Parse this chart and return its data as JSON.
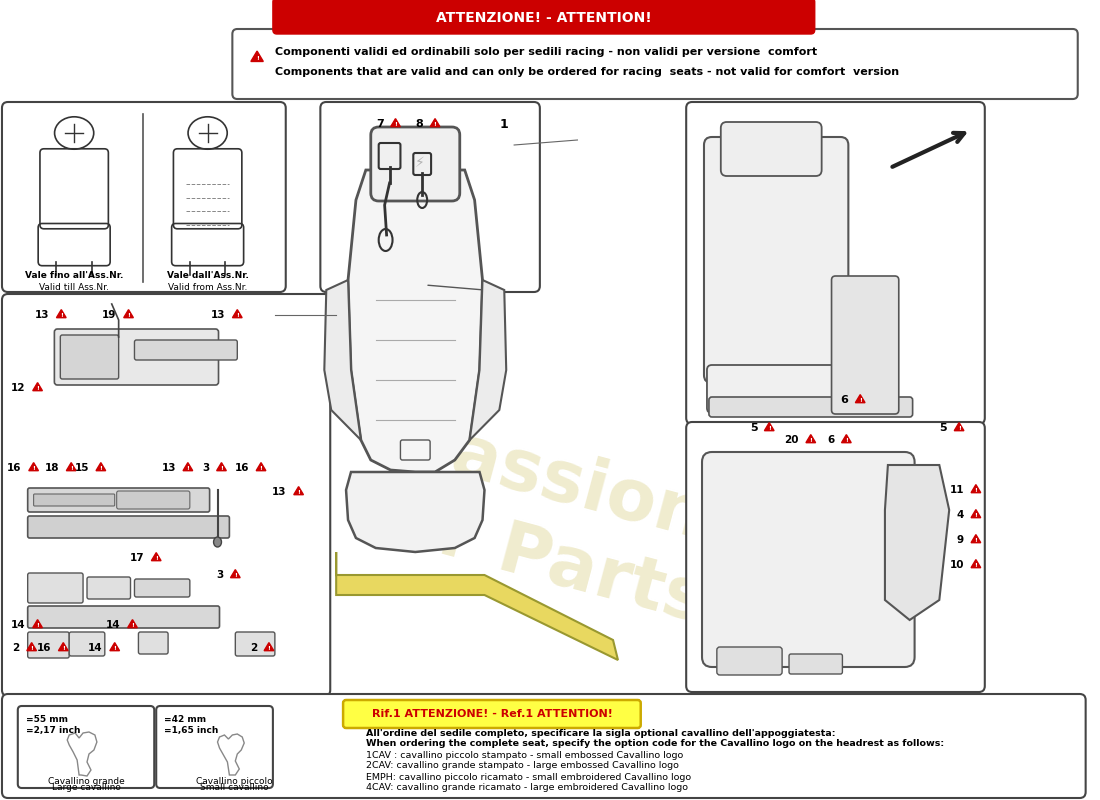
{
  "title": "ATTENZIONE! - ATTENTION!",
  "warn1": "Componenti validi ed ordinabili solo per sedili racing - non validi per versione  comfort",
  "warn2": "Components that are valid and can only be ordered for racing  seats - not valid for comfort  version",
  "attn_label": "Rif.1 ATTENZIONE! - Ref.1 ATTENTION!",
  "bottom_lines": [
    "All'ordine del sedile completo, specificare la sigla optional cavallino dell'appoggiatesta:",
    "When ordering the complete seat, specify the option code for the Cavallino logo on the headrest as follows:",
    "1CAV : cavallino piccolo stampato - small embossed Cavallino logo",
    "2CAV: cavallino grande stampato - large embossed Cavallino logo",
    "EMPH: cavallino piccolo ricamato - small embroidered Cavallino logo",
    "4CAV: cavallino grande ricamato - large embroidered Cavallino logo"
  ],
  "label1a": "Vale fino all'Ass.Nr.",
  "label1b": "Valid till Ass.Nr.",
  "label2a": "Vale dall'Ass.Nr.",
  "label2b": "Valid from Ass.Nr.",
  "horse1a": "Cavallino grande",
  "horse1b": "Large cavallino",
  "horse2a": "Cavallino piccolo",
  "horse2b": "Small cavallino",
  "size1a": "=55 mm",
  "size1b": "=2,17 inch",
  "size2a": "=42 mm",
  "size2b": "=1,65 inch",
  "bg": "#ffffff",
  "red": "#cc0000",
  "border": "#444444",
  "gray1": "#d8d8d8",
  "gray2": "#e8e8e8",
  "yellow": "#e8d44d",
  "watermark": "#d4c875"
}
